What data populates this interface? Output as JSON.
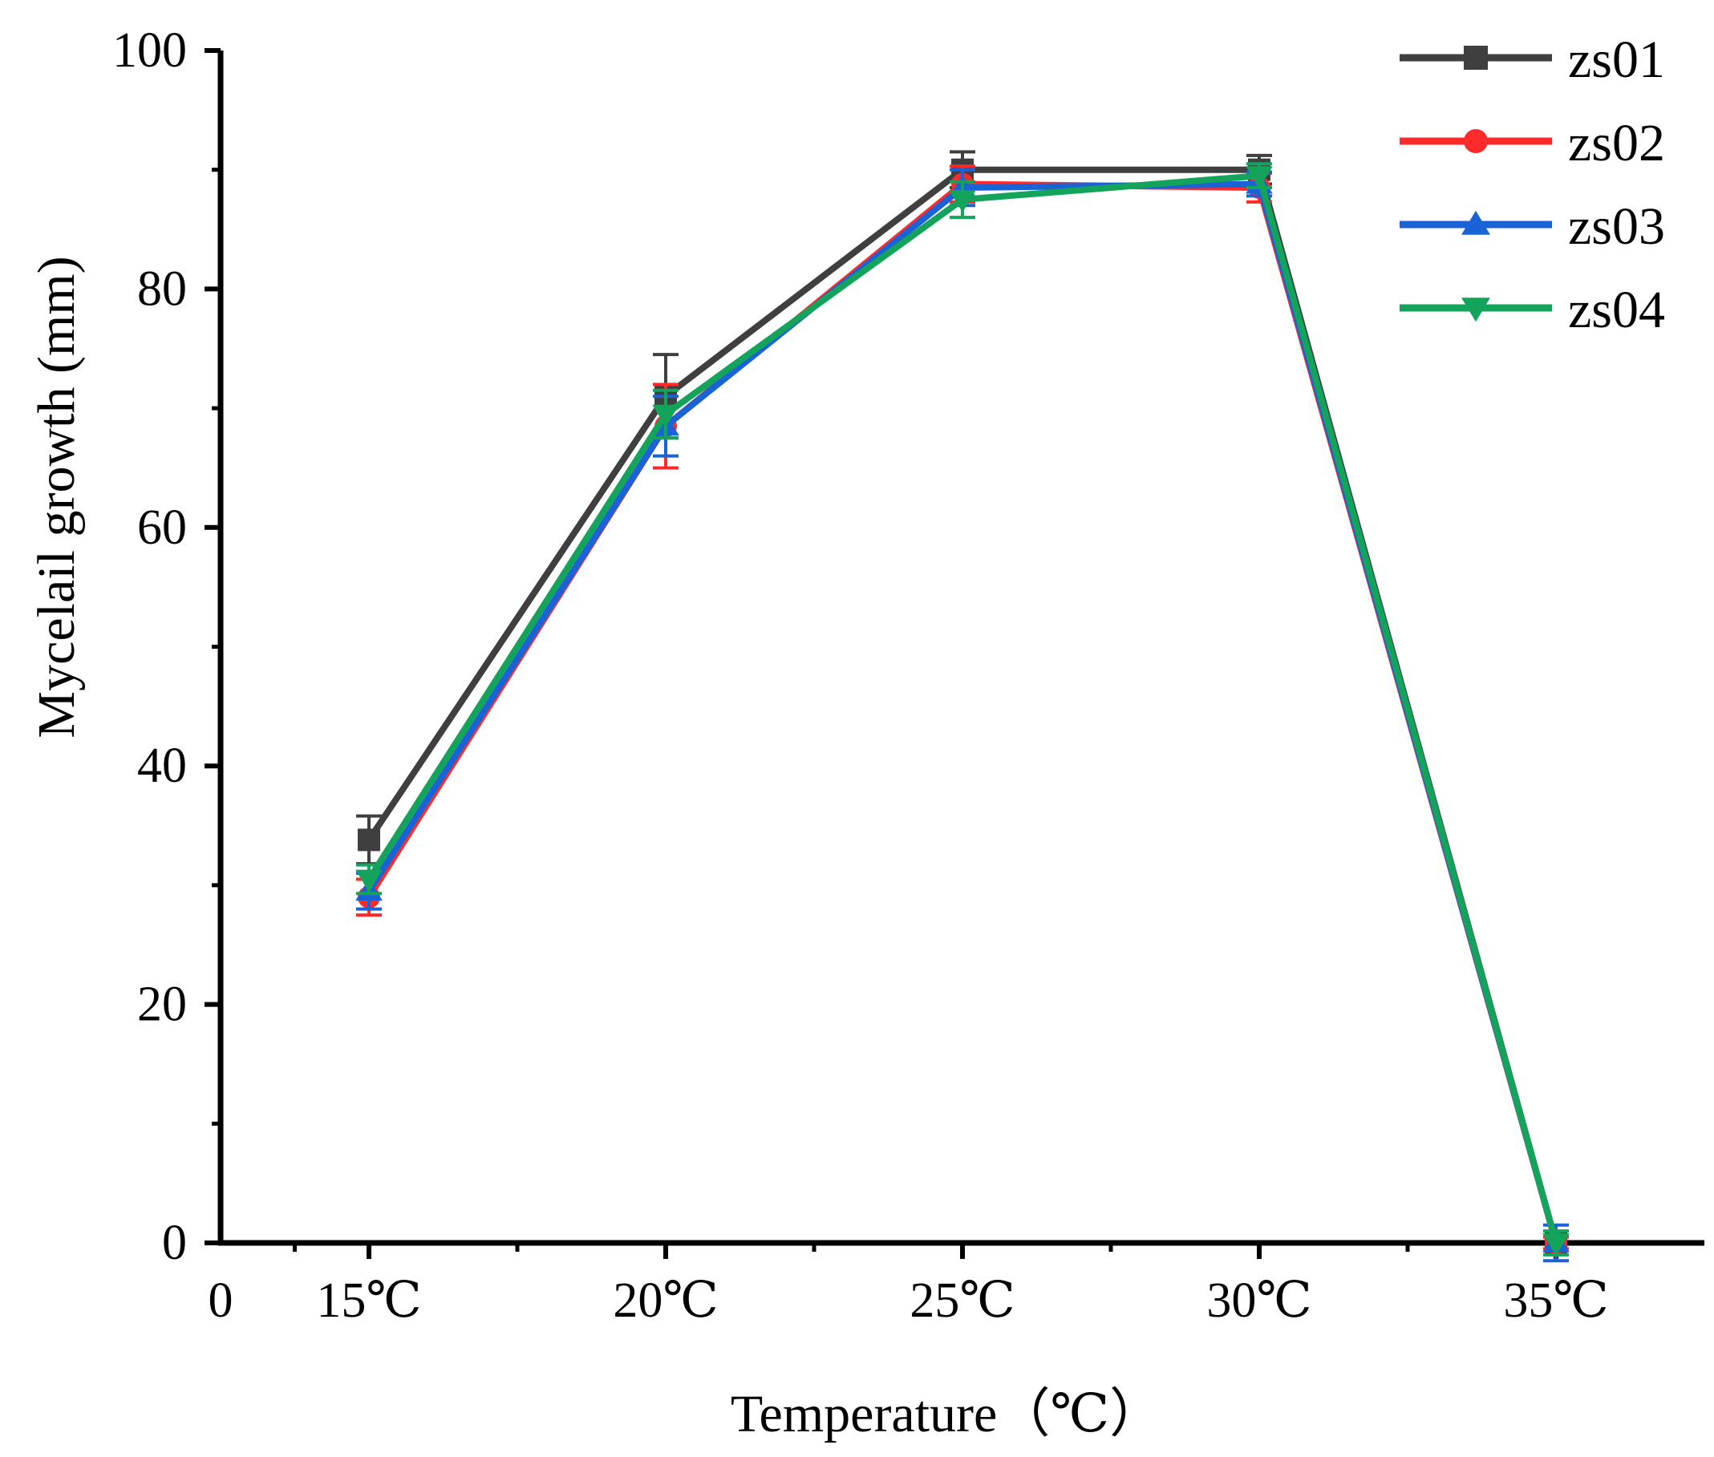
{
  "chart_data": {
    "type": "line",
    "title": "",
    "xlabel": "Temperature（℃）",
    "ylabel": "Mycelail growth (mm)",
    "ylim": [
      0,
      100
    ],
    "yticks": [
      0,
      20,
      40,
      60,
      80,
      100
    ],
    "x_origin_label": "0",
    "categories": [
      "15℃",
      "20℃",
      "25℃",
      "30℃",
      "35℃"
    ],
    "legend_position": "top-right",
    "series": [
      {
        "name": "zs01",
        "color": "#3f3f3f",
        "marker": "square",
        "values": [
          33.8,
          71.0,
          90.0,
          90.0,
          0
        ],
        "errors": [
          2.0,
          3.5,
          1.5,
          1.2,
          0.5
        ]
      },
      {
        "name": "zs02",
        "color": "#ff2a2a",
        "marker": "circle",
        "values": [
          29.0,
          68.5,
          88.8,
          88.5,
          0
        ],
        "errors": [
          1.5,
          3.5,
          1.5,
          1.2,
          0.5
        ]
      },
      {
        "name": "zs03",
        "color": "#1a63d6",
        "marker": "triangle-up",
        "values": [
          29.5,
          68.5,
          88.5,
          88.8,
          0
        ],
        "errors": [
          1.5,
          2.5,
          1.5,
          1.0,
          1.5
        ]
      },
      {
        "name": "zs04",
        "color": "#13a35a",
        "marker": "triangle-down",
        "values": [
          30.5,
          69.5,
          87.5,
          89.5,
          0
        ],
        "errors": [
          1.2,
          2.0,
          1.5,
          1.0,
          1.0
        ]
      }
    ]
  }
}
